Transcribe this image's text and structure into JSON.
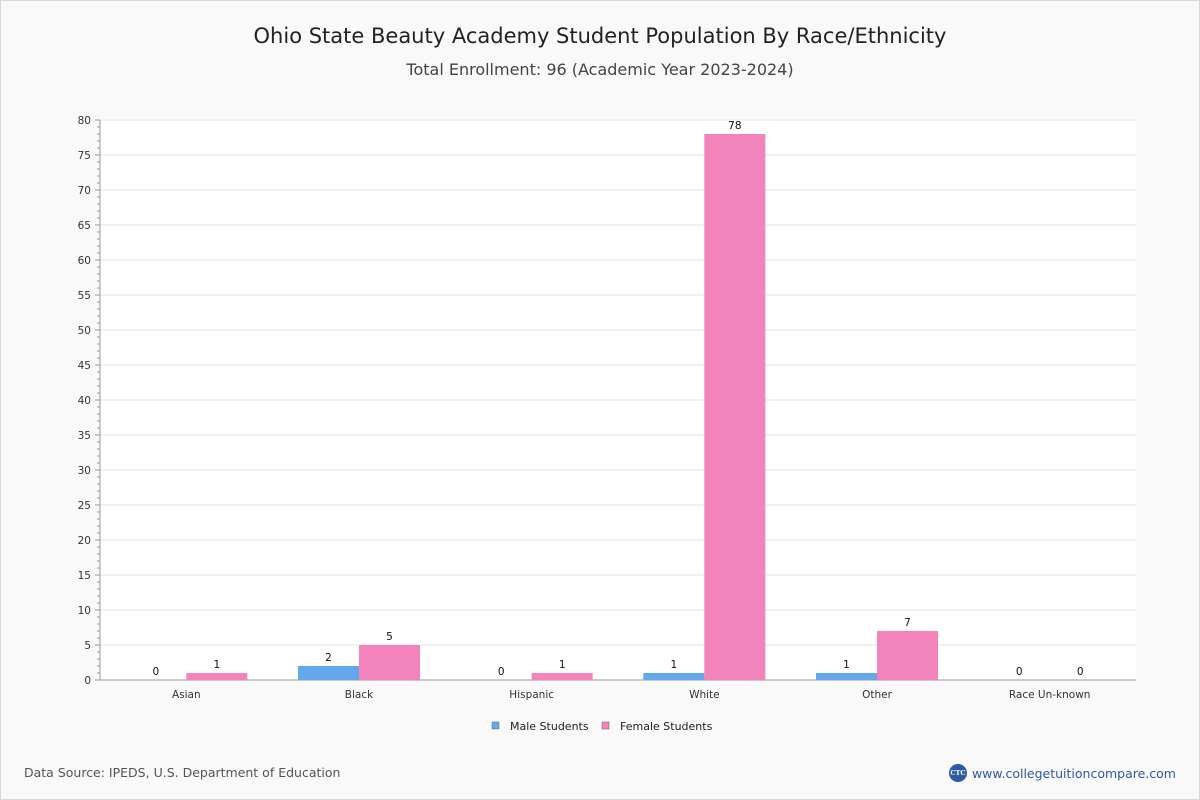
{
  "title": "Ohio State Beauty Academy Student Population By Race/Ethnicity",
  "subtitle": "Total Enrollment: 96 (Academic Year 2023-2024)",
  "source": "Data Source: IPEDS, U.S. Department of Education",
  "brand": {
    "logo_text": "CTC",
    "url_text": "www.collegetuitioncompare.com"
  },
  "colors": {
    "male": "#63a8ec",
    "female": "#f283bb",
    "grid": "#e6e6e6",
    "axis": "#999999"
  },
  "chart_data": {
    "type": "bar",
    "title": "Ohio State Beauty Academy Student Population By Race/Ethnicity",
    "xlabel": "",
    "ylabel": "",
    "ylim": [
      0,
      80
    ],
    "ytick_step": 5,
    "legend_position": "bottom-center",
    "categories": [
      "Asian",
      "Black",
      "Hispanic",
      "White",
      "Other",
      "Race Un-known"
    ],
    "series": [
      {
        "name": "Male Students",
        "values": [
          0,
          2,
          0,
          1,
          1,
          0
        ]
      },
      {
        "name": "Female Students",
        "values": [
          1,
          5,
          1,
          78,
          7,
          0
        ]
      }
    ]
  }
}
